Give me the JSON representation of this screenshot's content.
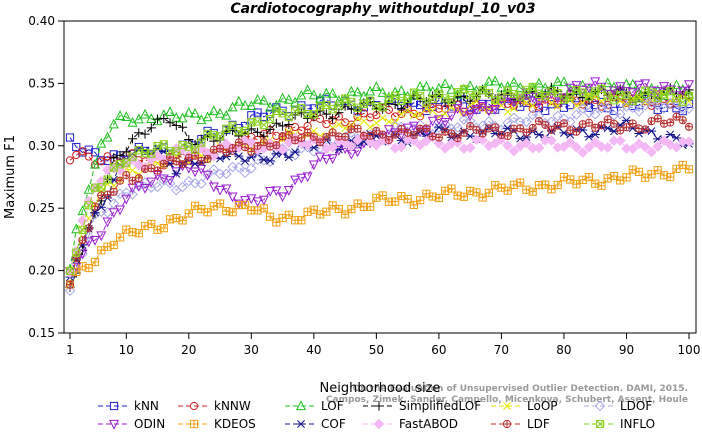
{
  "chart_data": {
    "type": "line",
    "title": "Cardiotocography_withoutdupl_10_v03",
    "xlabel": "Neighborhood size",
    "ylabel": "Maximum F1",
    "xlim": [
      1,
      100
    ],
    "ylim": [
      0.15,
      0.4
    ],
    "x_ticks": [
      1,
      10,
      20,
      30,
      40,
      50,
      60,
      70,
      80,
      90,
      100
    ],
    "y_ticks": [
      0.15,
      0.2,
      0.25,
      0.3,
      0.35,
      0.4
    ],
    "y_tick_labels": [
      "0.15",
      "0.20",
      "0.25",
      "0.30",
      "0.35",
      "0.40"
    ],
    "grid": false,
    "legend_position": "bottom",
    "watermark": [
      "Campos, Zimek, Sander, Campello, Micenkova, Schubert, Assent, Houle",
      "On the Evaluation of Unsupervised Outlier Detection. DAMI, 2015."
    ],
    "series": [
      {
        "name": "kNN",
        "color": "#1f1fd0",
        "marker": "square",
        "dash": "5,3",
        "keypoints": [
          [
            1,
            0.302
          ],
          [
            2,
            0.298
          ],
          [
            5,
            0.292
          ],
          [
            10,
            0.292
          ],
          [
            20,
            0.3
          ],
          [
            30,
            0.322
          ],
          [
            40,
            0.333
          ],
          [
            50,
            0.333
          ],
          [
            60,
            0.333
          ],
          [
            70,
            0.333
          ],
          [
            80,
            0.333
          ],
          [
            90,
            0.333
          ],
          [
            100,
            0.332
          ]
        ]
      },
      {
        "name": "kNNW",
        "color": "#d02020",
        "marker": "circle",
        "dash": "5,3",
        "keypoints": [
          [
            1,
            0.289
          ],
          [
            2,
            0.293
          ],
          [
            5,
            0.29
          ],
          [
            10,
            0.289
          ],
          [
            20,
            0.29
          ],
          [
            30,
            0.305
          ],
          [
            40,
            0.318
          ],
          [
            50,
            0.325
          ],
          [
            60,
            0.33
          ],
          [
            70,
            0.333
          ],
          [
            80,
            0.336
          ],
          [
            90,
            0.336
          ],
          [
            100,
            0.337
          ]
        ]
      },
      {
        "name": "LOF",
        "color": "#1fc01f",
        "marker": "triangle-up",
        "dash": "5,3",
        "keypoints": [
          [
            1,
            0.2
          ],
          [
            2,
            0.23
          ],
          [
            4,
            0.27
          ],
          [
            6,
            0.3
          ],
          [
            8,
            0.318
          ],
          [
            10,
            0.32
          ],
          [
            15,
            0.325
          ],
          [
            20,
            0.322
          ],
          [
            30,
            0.333
          ],
          [
            40,
            0.34
          ],
          [
            50,
            0.342
          ],
          [
            60,
            0.345
          ],
          [
            70,
            0.348
          ],
          [
            80,
            0.347
          ],
          [
            90,
            0.346
          ],
          [
            100,
            0.343
          ]
        ]
      },
      {
        "name": "SimplifiedLOF",
        "color": "#000000",
        "marker": "plus",
        "dash": "5,3",
        "keypoints": [
          [
            1,
            0.185
          ],
          [
            3,
            0.22
          ],
          [
            5,
            0.245
          ],
          [
            8,
            0.285
          ],
          [
            11,
            0.305
          ],
          [
            14,
            0.318
          ],
          [
            17,
            0.32
          ],
          [
            20,
            0.305
          ],
          [
            30,
            0.31
          ],
          [
            40,
            0.325
          ],
          [
            50,
            0.332
          ],
          [
            60,
            0.338
          ],
          [
            70,
            0.34
          ],
          [
            80,
            0.342
          ],
          [
            90,
            0.341
          ],
          [
            100,
            0.342
          ]
        ]
      },
      {
        "name": "LoOP",
        "color": "#e6e600",
        "marker": "x",
        "dash": "5,3",
        "keypoints": [
          [
            1,
            0.195
          ],
          [
            3,
            0.23
          ],
          [
            5,
            0.255
          ],
          [
            8,
            0.27
          ],
          [
            10,
            0.28
          ],
          [
            20,
            0.29
          ],
          [
            30,
            0.3
          ],
          [
            40,
            0.31
          ],
          [
            50,
            0.32
          ],
          [
            60,
            0.328
          ],
          [
            70,
            0.332
          ],
          [
            80,
            0.336
          ],
          [
            90,
            0.338
          ],
          [
            100,
            0.338
          ]
        ]
      },
      {
        "name": "LDOF",
        "color": "#a8a8e8",
        "marker": "diamond",
        "dash": "5,3",
        "keypoints": [
          [
            1,
            0.183
          ],
          [
            3,
            0.215
          ],
          [
            5,
            0.24
          ],
          [
            8,
            0.255
          ],
          [
            10,
            0.265
          ],
          [
            20,
            0.27
          ],
          [
            30,
            0.285
          ],
          [
            40,
            0.3
          ],
          [
            50,
            0.31
          ],
          [
            60,
            0.315
          ],
          [
            70,
            0.318
          ],
          [
            80,
            0.323
          ],
          [
            90,
            0.33
          ],
          [
            100,
            0.334
          ]
        ]
      },
      {
        "name": "ODIN",
        "color": "#9b1fd0",
        "marker": "triangle-down",
        "dash": "5,3",
        "keypoints": [
          [
            1,
            0.198
          ],
          [
            5,
            0.225
          ],
          [
            10,
            0.26
          ],
          [
            20,
            0.285
          ],
          [
            25,
            0.265
          ],
          [
            30,
            0.255
          ],
          [
            35,
            0.262
          ],
          [
            40,
            0.285
          ],
          [
            50,
            0.305
          ],
          [
            60,
            0.32
          ],
          [
            70,
            0.335
          ],
          [
            80,
            0.342
          ],
          [
            85,
            0.348
          ],
          [
            90,
            0.345
          ],
          [
            100,
            0.346
          ]
        ]
      },
      {
        "name": "KDEOS",
        "color": "#f0a010",
        "marker": "square-cross",
        "dash": "5,3",
        "keypoints": [
          [
            1,
            0.19
          ],
          [
            3,
            0.2
          ],
          [
            5,
            0.21
          ],
          [
            8,
            0.225
          ],
          [
            10,
            0.228
          ],
          [
            20,
            0.245
          ],
          [
            25,
            0.252
          ],
          [
            30,
            0.25
          ],
          [
            33,
            0.242
          ],
          [
            40,
            0.245
          ],
          [
            50,
            0.255
          ],
          [
            60,
            0.26
          ],
          [
            70,
            0.265
          ],
          [
            80,
            0.27
          ],
          [
            90,
            0.275
          ],
          [
            100,
            0.282
          ]
        ]
      },
      {
        "name": "COF",
        "color": "#10108a",
        "marker": "asterisk",
        "dash": "5,3",
        "keypoints": [
          [
            1,
            0.19
          ],
          [
            3,
            0.225
          ],
          [
            5,
            0.245
          ],
          [
            8,
            0.27
          ],
          [
            10,
            0.29
          ],
          [
            15,
            0.3
          ],
          [
            18,
            0.28
          ],
          [
            25,
            0.295
          ],
          [
            30,
            0.288
          ],
          [
            40,
            0.3
          ],
          [
            50,
            0.305
          ],
          [
            60,
            0.31
          ],
          [
            70,
            0.31
          ],
          [
            80,
            0.31
          ],
          [
            90,
            0.315
          ],
          [
            95,
            0.31
          ],
          [
            100,
            0.3
          ]
        ]
      },
      {
        "name": "FastABOD",
        "color": "#f4b8f4",
        "marker": "diamond-filled",
        "dash": "5,3",
        "keypoints": [
          [
            1,
            0.2
          ],
          [
            3,
            0.24
          ],
          [
            5,
            0.27
          ],
          [
            10,
            0.285
          ],
          [
            20,
            0.295
          ],
          [
            30,
            0.3
          ],
          [
            40,
            0.302
          ],
          [
            50,
            0.303
          ],
          [
            60,
            0.302
          ],
          [
            70,
            0.301
          ],
          [
            80,
            0.3
          ],
          [
            90,
            0.3
          ],
          [
            100,
            0.3
          ]
        ]
      },
      {
        "name": "LDF",
        "color": "#b83030",
        "marker": "circle-plus",
        "dash": "5,3",
        "keypoints": [
          [
            1,
            0.192
          ],
          [
            3,
            0.225
          ],
          [
            5,
            0.25
          ],
          [
            10,
            0.275
          ],
          [
            20,
            0.29
          ],
          [
            30,
            0.3
          ],
          [
            40,
            0.308
          ],
          [
            50,
            0.31
          ],
          [
            60,
            0.31
          ],
          [
            70,
            0.312
          ],
          [
            80,
            0.316
          ],
          [
            90,
            0.316
          ],
          [
            100,
            0.32
          ]
        ]
      },
      {
        "name": "INFLO",
        "color": "#8ad01a",
        "marker": "square-x",
        "dash": "5,3",
        "keypoints": [
          [
            1,
            0.198
          ],
          [
            3,
            0.235
          ],
          [
            5,
            0.262
          ],
          [
            10,
            0.292
          ],
          [
            20,
            0.3
          ],
          [
            30,
            0.318
          ],
          [
            40,
            0.33
          ],
          [
            50,
            0.335
          ],
          [
            60,
            0.34
          ],
          [
            70,
            0.342
          ],
          [
            80,
            0.342
          ],
          [
            90,
            0.34
          ],
          [
            100,
            0.34
          ]
        ]
      }
    ]
  }
}
